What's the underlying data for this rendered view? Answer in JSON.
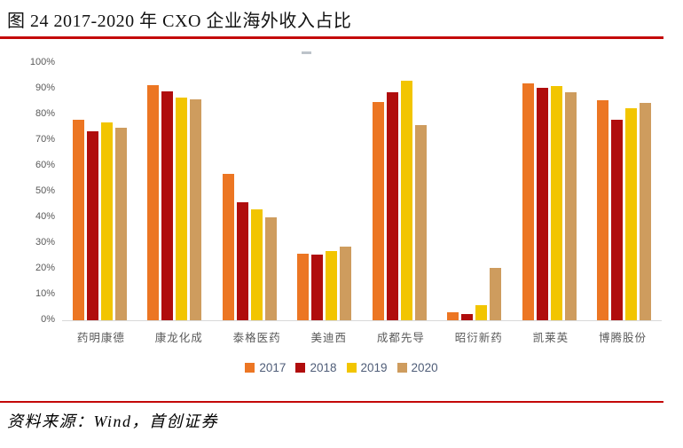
{
  "title": "图  24 2017-2020 年 CXO 企业海外收入占比",
  "footer": {
    "source_text": "资料来源：Wind，首创证券"
  },
  "colors": {
    "rule_red": "#c40808",
    "axis_text": "#595959",
    "legend_text": "#4f5d78",
    "axis_line": "#d9d9d9"
  },
  "chart_data": {
    "type": "bar",
    "title": "图 24 2017-2020 年 CXO 企业海外收入占比",
    "categories": [
      "药明康德",
      "康龙化成",
      "泰格医药",
      "美迪西",
      "成都先导",
      "昭衍新药",
      "凯莱英",
      "博腾股份"
    ],
    "series": [
      {
        "name": "2017",
        "color": "#ec7623",
        "values": [
          78,
          91.5,
          57,
          26,
          85,
          3,
          92,
          85.5
        ]
      },
      {
        "name": "2018",
        "color": "#b00d0d",
        "values": [
          73.5,
          89,
          46,
          25.5,
          88.5,
          2.5,
          90.5,
          78
        ]
      },
      {
        "name": "2019",
        "color": "#f2c500",
        "values": [
          77,
          86.5,
          43,
          27,
          93,
          6,
          91,
          82.5
        ]
      },
      {
        "name": "2020",
        "color": "#ce9c5e",
        "values": [
          75,
          86,
          40,
          28.5,
          76,
          20.5,
          88.5,
          84.5
        ]
      }
    ],
    "xlabel": "",
    "ylabel": "",
    "ylim": [
      0,
      100
    ],
    "yticks": [
      "0%",
      "10%",
      "20%",
      "30%",
      "40%",
      "50%",
      "60%",
      "70%",
      "80%",
      "90%",
      "100%"
    ],
    "grid": false,
    "legend_position": "bottom"
  }
}
